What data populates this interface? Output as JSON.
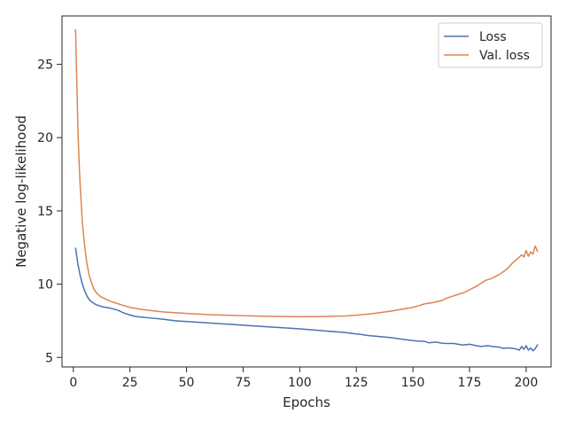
{
  "chart_data": {
    "type": "line",
    "title": "",
    "xlabel": "Epochs",
    "ylabel": "Negative log-likelihood",
    "xlim": [
      -5,
      211
    ],
    "ylim": [
      4.35,
      28.3
    ],
    "x_ticks": [
      0,
      25,
      50,
      75,
      100,
      125,
      150,
      175,
      200
    ],
    "x_tick_labels": [
      "0",
      "25",
      "50",
      "75",
      "100",
      "125",
      "150",
      "175",
      "200"
    ],
    "y_ticks": [
      5,
      10,
      15,
      20,
      25
    ],
    "y_tick_labels": [
      "5",
      "10",
      "15",
      "20",
      "25"
    ],
    "grid": false,
    "legend": {
      "position": "top-right",
      "entries": [
        "Loss",
        "Val. loss"
      ]
    },
    "colors": {
      "loss": "#4c72b0",
      "val_loss": "#dd8452",
      "axes": "#262626"
    },
    "series": [
      {
        "name": "Loss",
        "x": [
          1,
          2,
          3,
          4,
          5,
          6,
          7,
          8,
          9,
          10,
          11,
          12,
          13,
          15,
          18,
          20,
          22,
          24,
          26,
          28,
          30,
          35,
          40,
          45,
          50,
          60,
          70,
          80,
          90,
          100,
          110,
          120,
          125,
          128,
          130,
          135,
          140,
          145,
          150,
          153,
          155,
          157,
          160,
          163,
          165,
          168,
          170,
          172,
          175,
          178,
          180,
          183,
          185,
          188,
          190,
          192,
          195,
          197,
          198,
          199,
          200,
          201,
          202,
          203,
          204,
          205
        ],
        "y": [
          12.45,
          11.4,
          10.6,
          10.0,
          9.55,
          9.2,
          8.95,
          8.8,
          8.7,
          8.6,
          8.55,
          8.5,
          8.45,
          8.4,
          8.3,
          8.2,
          8.05,
          7.95,
          7.85,
          7.78,
          7.75,
          7.68,
          7.6,
          7.5,
          7.45,
          7.35,
          7.25,
          7.15,
          7.05,
          6.95,
          6.82,
          6.7,
          6.6,
          6.55,
          6.5,
          6.43,
          6.35,
          6.25,
          6.15,
          6.1,
          6.1,
          6.0,
          6.05,
          5.97,
          5.95,
          5.95,
          5.9,
          5.85,
          5.9,
          5.8,
          5.75,
          5.8,
          5.75,
          5.7,
          5.62,
          5.65,
          5.6,
          5.5,
          5.75,
          5.55,
          5.8,
          5.5,
          5.65,
          5.45,
          5.6,
          5.85
        ]
      },
      {
        "name": "Val. loss",
        "x": [
          1,
          1.5,
          2,
          2.5,
          3,
          4,
          5,
          6,
          7,
          8,
          9,
          10,
          11,
          12,
          14,
          16,
          18,
          20,
          22,
          25,
          30,
          35,
          40,
          50,
          60,
          70,
          80,
          90,
          100,
          110,
          120,
          125,
          128,
          130,
          135,
          140,
          145,
          150,
          153,
          155,
          157,
          160,
          163,
          165,
          168,
          170,
          173,
          175,
          178,
          180,
          182,
          185,
          188,
          190,
          192,
          194,
          196,
          198,
          199,
          200,
          201,
          202,
          203,
          204,
          205
        ],
        "y": [
          27.35,
          24.0,
          20.8,
          18.5,
          16.8,
          14.2,
          12.6,
          11.4,
          10.6,
          10.1,
          9.7,
          9.45,
          9.3,
          9.15,
          9.0,
          8.85,
          8.75,
          8.65,
          8.55,
          8.42,
          8.28,
          8.18,
          8.1,
          8.0,
          7.92,
          7.87,
          7.83,
          7.8,
          7.78,
          7.79,
          7.83,
          7.88,
          7.93,
          7.95,
          8.05,
          8.15,
          8.28,
          8.42,
          8.55,
          8.65,
          8.7,
          8.78,
          8.9,
          9.05,
          9.2,
          9.3,
          9.45,
          9.62,
          9.85,
          10.05,
          10.25,
          10.4,
          10.65,
          10.85,
          11.1,
          11.45,
          11.7,
          12.0,
          11.85,
          12.3,
          11.9,
          12.2,
          12.05,
          12.6,
          12.25
        ]
      }
    ]
  }
}
